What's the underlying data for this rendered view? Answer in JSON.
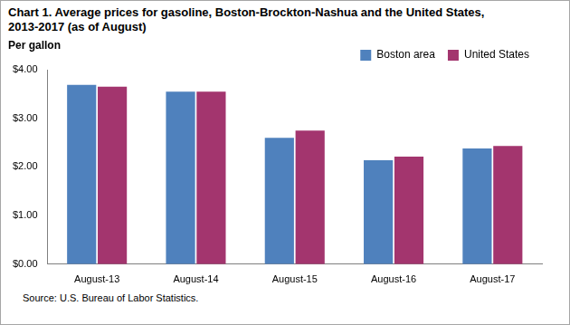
{
  "chart_data": {
    "type": "bar",
    "title": [
      "Chart 1. Average prices for gasoline, Boston-Brockton-Nashua  and the United States,",
      "2013-2017 (as of August)"
    ],
    "y_label": "Per gallon",
    "source": "Source: U.S. Bureau of Labor Statistics.",
    "categories": [
      "August-13",
      "August-14",
      "August-15",
      "August-16",
      "August-17"
    ],
    "series": [
      {
        "name": "Boston area",
        "color": "#4f81bd",
        "values": [
          3.69,
          3.55,
          2.6,
          2.14,
          2.38
        ]
      },
      {
        "name": "United States",
        "color": "#a3356e",
        "values": [
          3.65,
          3.55,
          2.75,
          2.21,
          2.43
        ]
      }
    ],
    "ylim": [
      0,
      4
    ],
    "yticks": [
      {
        "value": 0,
        "label": "$0.00"
      },
      {
        "value": 1,
        "label": "$1.00"
      },
      {
        "value": 2,
        "label": "$2.00"
      },
      {
        "value": 3,
        "label": "$3.00"
      },
      {
        "value": 4,
        "label": "$4.00"
      }
    ],
    "grid": false,
    "legend": "upper right"
  }
}
